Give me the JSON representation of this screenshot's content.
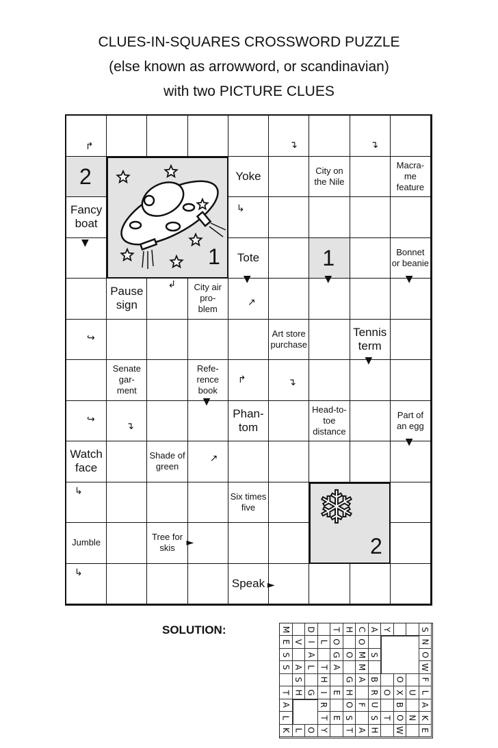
{
  "title": {
    "line1": "CLUES-IN-SQUARES CROSSWORD PUZZLE",
    "line2": "(else known as arrowword, or scandinavian)",
    "line3": "with two PICTURE CLUES"
  },
  "puzzle": {
    "columns": 9,
    "rows": 12,
    "clues": {
      "yoke": "Yoke",
      "city_nile": "City on the Nile",
      "macrame": "Macra- me feature",
      "fancy_boat": "Fancy boat",
      "tote": "Tote",
      "bonnet": "Bonnet or beanie",
      "pause": "Pause sign",
      "city_air": "City air pro- blem",
      "art_store": "Art store purchase",
      "tennis": "Tennis term",
      "senate": "Senate gar- ment",
      "reference": "Refe- rence book",
      "phantom": "Phan- tom",
      "head_toe": "Head-to- toe distance",
      "egg": "Part of an egg",
      "watch": "Watch face",
      "green": "Shade of green",
      "six_five": "Six times five",
      "jumble": "Jumble",
      "tree_skis": "Tree for skis",
      "speak": "Speak"
    },
    "picture_clues": [
      {
        "number": "1",
        "icon": "ufo-icon"
      },
      {
        "number": "2",
        "icon": "snowflake-icon"
      }
    ],
    "picture_refs": {
      "ref1": "1",
      "ref2": "2"
    },
    "shade_color": "#e3e3e3"
  },
  "solution": {
    "label": "SOLUTION:",
    "rows": [
      "M.D.THCAY..S",
      "EVILO.O.###N",
      "S.A.GOMS###O",
      "SALTA.M.###W",
      ".S.H.GAB.O.F",
      "THGIEH.ROXUL",
      "A##R.OFU.B.A",
      "L##TES.STONK",
      "KLOY.TAH.W.E"
    ]
  }
}
